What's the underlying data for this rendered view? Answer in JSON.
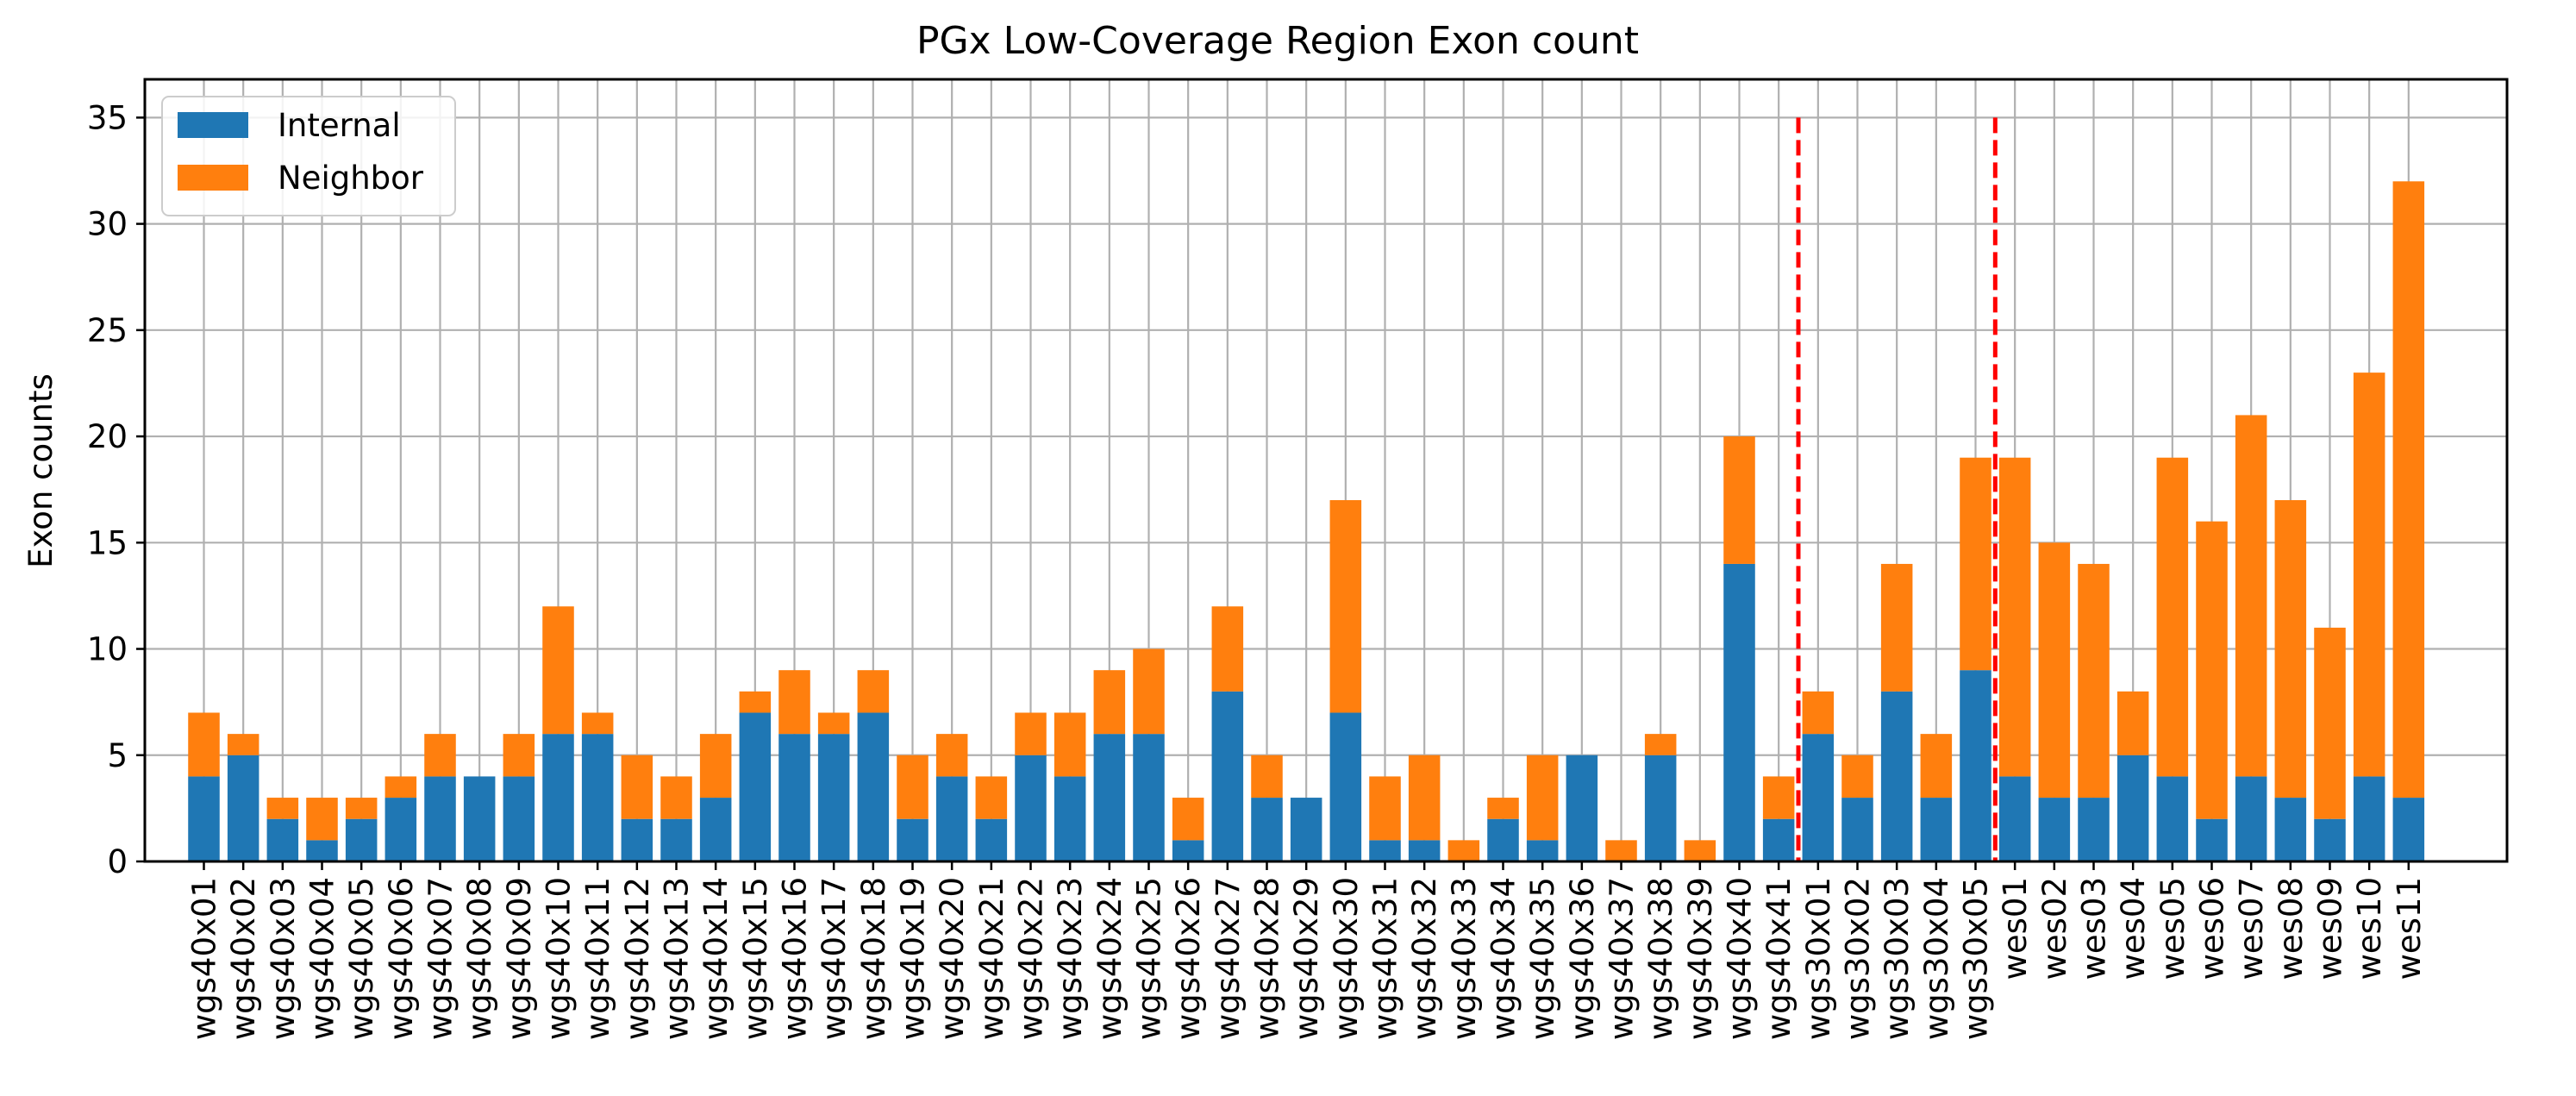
{
  "chart_data": {
    "type": "bar",
    "stacked": true,
    "title": "PGx Low-Coverage Region Exon count",
    "xlabel": "",
    "ylabel": "Exon counts",
    "ylim": [
      0,
      36.8
    ],
    "yticks": [
      0,
      5,
      10,
      15,
      20,
      25,
      30,
      35
    ],
    "grid": true,
    "legend_position": "top-left",
    "categories": [
      "wgs40x01",
      "wgs40x02",
      "wgs40x03",
      "wgs40x04",
      "wgs40x05",
      "wgs40x06",
      "wgs40x07",
      "wgs40x08",
      "wgs40x09",
      "wgs40x10",
      "wgs40x11",
      "wgs40x12",
      "wgs40x13",
      "wgs40x14",
      "wgs40x15",
      "wgs40x16",
      "wgs40x17",
      "wgs40x18",
      "wgs40x19",
      "wgs40x20",
      "wgs40x21",
      "wgs40x22",
      "wgs40x23",
      "wgs40x24",
      "wgs40x25",
      "wgs40x26",
      "wgs40x27",
      "wgs40x28",
      "wgs40x29",
      "wgs40x30",
      "wgs40x31",
      "wgs40x32",
      "wgs40x33",
      "wgs40x34",
      "wgs40x35",
      "wgs40x36",
      "wgs40x37",
      "wgs40x38",
      "wgs40x39",
      "wgs40x40",
      "wgs40x41",
      "wgs30x01",
      "wgs30x02",
      "wgs30x03",
      "wgs30x04",
      "wgs30x05",
      "wes01",
      "wes02",
      "wes03",
      "wes04",
      "wes05",
      "wes06",
      "wes07",
      "wes08",
      "wes09",
      "wes10",
      "wes11"
    ],
    "series": [
      {
        "name": "Internal",
        "color": "#1f77b4",
        "values": [
          4,
          5,
          2,
          1,
          2,
          3,
          4,
          4,
          4,
          6,
          6,
          2,
          2,
          3,
          7,
          6,
          6,
          7,
          2,
          4,
          2,
          5,
          4,
          6,
          6,
          1,
          8,
          3,
          3,
          7,
          1,
          1,
          0,
          2,
          1,
          5,
          0,
          5,
          0,
          14,
          2,
          6,
          3,
          8,
          3,
          9,
          4,
          3,
          3,
          5,
          4,
          2,
          4,
          3,
          2,
          4,
          3
        ]
      },
      {
        "name": "Neighbor",
        "color": "#ff7f0e",
        "values": [
          3,
          1,
          1,
          2,
          1,
          1,
          2,
          0,
          2,
          6,
          1,
          3,
          2,
          3,
          1,
          3,
          1,
          2,
          3,
          2,
          2,
          2,
          3,
          3,
          4,
          2,
          4,
          2,
          0,
          10,
          3,
          4,
          1,
          1,
          4,
          0,
          1,
          1,
          1,
          6,
          2,
          2,
          2,
          6,
          3,
          10,
          15,
          12,
          11,
          3,
          15,
          14,
          17,
          14,
          9,
          19,
          29
        ]
      }
    ],
    "vlines": [
      {
        "after_category": "wgs40x41",
        "color": "#ff0000",
        "style": "dashed"
      },
      {
        "after_category": "wgs30x05",
        "color": "#ff0000",
        "style": "dashed"
      }
    ]
  }
}
